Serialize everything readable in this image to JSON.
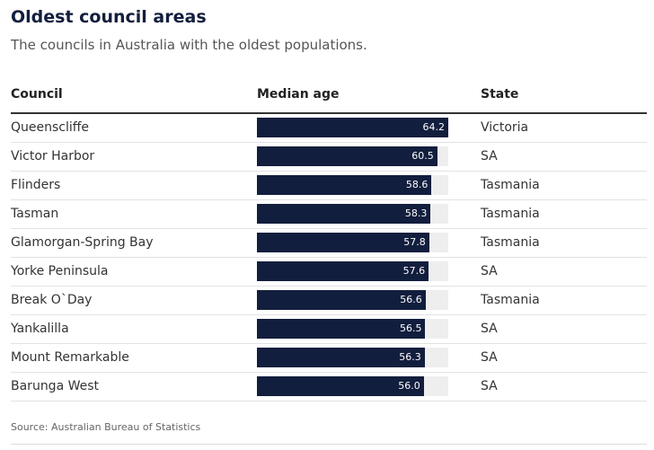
{
  "title": "Oldest council areas",
  "subtitle": "The councils in Australia with the oldest populations.",
  "columns": {
    "council": "Council",
    "median_age": "Median age",
    "state": "State"
  },
  "source": "Source: Australian Bureau of Statistics",
  "colors": {
    "bar": "#121e3d",
    "track": "#eeeeee",
    "title": "#121e3d"
  },
  "chart_data": {
    "type": "bar",
    "orientation": "horizontal",
    "title": "Oldest council areas",
    "subtitle": "The councils in Australia with the oldest populations.",
    "xlabel": "Median age",
    "ylabel": "Council",
    "xlim": [
      0,
      64.2
    ],
    "categories": [
      "Queenscliffe",
      "Victor Harbor",
      "Flinders",
      "Tasman",
      "Glamorgan-Spring Bay",
      "Yorke Peninsula",
      "Break O`Day",
      "Yankalilla",
      "Mount Remarkable",
      "Barunga West"
    ],
    "values": [
      64.2,
      60.5,
      58.6,
      58.3,
      57.8,
      57.6,
      56.6,
      56.5,
      56.3,
      56.0
    ],
    "value_labels": [
      "64.2",
      "60.5",
      "58.6",
      "58.3",
      "57.8",
      "57.6",
      "56.6",
      "56.5",
      "56.3",
      "56.0"
    ],
    "states": [
      "Victoria",
      "SA",
      "Tasmania",
      "Tasmania",
      "Tasmania",
      "SA",
      "Tasmania",
      "SA",
      "SA",
      "SA"
    ],
    "grid": false,
    "legend": "none"
  }
}
